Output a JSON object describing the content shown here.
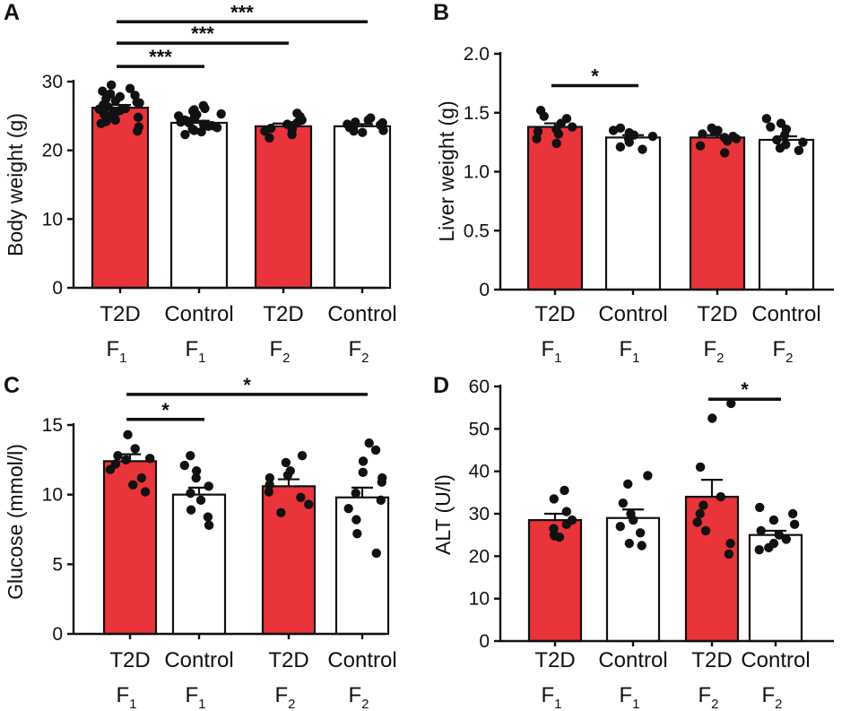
{
  "figure": {
    "bar_fill": "#e8343a",
    "control_fill": "#ffffff",
    "line_color": "#111111"
  },
  "chart_data": [
    {
      "panel": "A",
      "type": "bar",
      "ylabel": "Body weight (g)",
      "ylim": [
        0,
        30
      ],
      "yticks": [
        0,
        10,
        20,
        30
      ],
      "categories": [
        {
          "name": "T2D",
          "gen": "F",
          "sub": "1"
        },
        {
          "name": "Control",
          "gen": "F",
          "sub": "1"
        },
        {
          "name": "T2D",
          "gen": "F",
          "sub": "2"
        },
        {
          "name": "Control",
          "gen": "F",
          "sub": "2"
        }
      ],
      "fill": [
        "red",
        "white",
        "red",
        "white"
      ],
      "means": [
        26.2,
        24.0,
        23.5,
        23.5
      ],
      "sem": [
        0.4,
        0.3,
        0.4,
        0.3
      ],
      "points": [
        [
          22.8,
          23.4,
          23.9,
          24.4,
          24.8,
          25.2,
          25.5,
          25.8,
          26.1,
          26.3,
          26.6,
          26.9,
          27.2,
          27.5,
          27.8,
          28.2,
          28.6,
          29.0,
          29.5,
          25.0,
          26.0,
          27.0,
          24.2,
          28.0,
          25.6
        ],
        [
          22.3,
          22.7,
          23.1,
          23.5,
          23.8,
          24.1,
          24.4,
          24.7,
          25.0,
          25.3,
          25.7,
          26.1,
          26.5,
          23.3,
          24.0,
          24.6,
          25.2,
          22.9,
          23.6,
          24.9,
          25.9,
          24.3
        ],
        [
          21.8,
          22.3,
          22.8,
          23.2,
          23.6,
          24.0,
          24.4,
          24.9,
          25.4,
          23.0,
          23.8
        ],
        [
          22.6,
          22.9,
          23.2,
          23.5,
          23.8,
          24.1,
          24.4,
          24.7,
          23.3,
          23.7,
          24.0,
          22.8
        ]
      ],
      "significance": [
        {
          "from": 0,
          "to": 1,
          "label": "***",
          "y": 32.2
        },
        {
          "from": 0,
          "to": 2,
          "label": "***",
          "y": 35.6
        },
        {
          "from": 0,
          "to": 3,
          "label": "***",
          "y": 38.7
        }
      ]
    },
    {
      "panel": "B",
      "type": "bar",
      "ylabel": "Liver weight (g)",
      "ylim": [
        0,
        2.0
      ],
      "yticks": [
        "0",
        "0.5",
        "1.0",
        "1.5",
        "2.0"
      ],
      "categories": [
        {
          "name": "T2D",
          "gen": "F",
          "sub": "1"
        },
        {
          "name": "Control",
          "gen": "F",
          "sub": "1"
        },
        {
          "name": "T2D",
          "gen": "F",
          "sub": "2"
        },
        {
          "name": "Control",
          "gen": "F",
          "sub": "2"
        }
      ],
      "fill": [
        "red",
        "white",
        "red",
        "white"
      ],
      "means": [
        1.38,
        1.29,
        1.29,
        1.27
      ],
      "sem": [
        0.03,
        0.02,
        0.02,
        0.03
      ],
      "points": [
        [
          1.52,
          1.45,
          1.41,
          1.38,
          1.36,
          1.32,
          1.28,
          1.24,
          1.47,
          1.34
        ],
        [
          1.37,
          1.35,
          1.33,
          1.3,
          1.28,
          1.25,
          1.21,
          1.19,
          1.31
        ],
        [
          1.37,
          1.34,
          1.32,
          1.3,
          1.28,
          1.26,
          1.22,
          1.16,
          1.29,
          1.35
        ],
        [
          1.45,
          1.41,
          1.36,
          1.31,
          1.27,
          1.23,
          1.2,
          1.18,
          1.25,
          1.38
        ]
      ],
      "significance": [
        {
          "from": 0,
          "to": 1,
          "label": "*",
          "y": 1.73
        }
      ]
    },
    {
      "panel": "C",
      "type": "bar",
      "ylabel": "Glucose (mmol/l)",
      "ylim": [
        0,
        15
      ],
      "yticks": [
        0,
        5,
        10,
        15
      ],
      "categories": [
        {
          "name": "T2D",
          "gen": "F",
          "sub": "1"
        },
        {
          "name": "Control",
          "gen": "F",
          "sub": "1"
        },
        {
          "name": "T2D",
          "gen": "F",
          "sub": "2"
        },
        {
          "name": "Control",
          "gen": "F",
          "sub": "2"
        }
      ],
      "fill": [
        "red",
        "white",
        "red",
        "white"
      ],
      "means": [
        12.4,
        10.0,
        10.6,
        9.8
      ],
      "sem": [
        0.5,
        0.5,
        0.5,
        0.7
      ],
      "points": [
        [
          14.3,
          13.3,
          12.8,
          12.5,
          12.2,
          11.8,
          11.2,
          10.7,
          10.2,
          12.6
        ],
        [
          12.8,
          12.1,
          11.2,
          10.6,
          10.1,
          9.6,
          8.9,
          8.4,
          7.8,
          11.7
        ],
        [
          12.8,
          12.3,
          11.7,
          11.2,
          10.7,
          10.2,
          9.8,
          9.3,
          8.7,
          11.4
        ],
        [
          13.7,
          13.2,
          12.4,
          11.6,
          10.9,
          10.1,
          9.6,
          9.0,
          8.2,
          7.2,
          5.8,
          11.2
        ]
      ],
      "significance": [
        {
          "from": 0,
          "to": 1,
          "label": "*",
          "y": 15.4
        },
        {
          "from": 0,
          "to": 3,
          "label": "*",
          "y": 17.2
        }
      ]
    },
    {
      "panel": "D",
      "type": "bar",
      "ylabel": "ALT (U/l)",
      "ylim": [
        0,
        60
      ],
      "yticks": [
        0,
        10,
        20,
        30,
        40,
        50,
        60
      ],
      "categories": [
        {
          "name": "T2D",
          "gen": "F",
          "sub": "1"
        },
        {
          "name": "Control",
          "gen": "F",
          "sub": "1"
        },
        {
          "name": "T2D",
          "gen": "F",
          "sub": "2"
        },
        {
          "name": "Control",
          "gen": "F",
          "sub": "2"
        }
      ],
      "fill": [
        "red",
        "white",
        "red",
        "white"
      ],
      "means": [
        28.5,
        29.0,
        34.0,
        25.0
      ],
      "sem": [
        1.5,
        2.0,
        4.0,
        1.0
      ],
      "points": [
        [
          35.5,
          33.5,
          30.5,
          28.5,
          27.5,
          26.5,
          25.0,
          24.5,
          24.8
        ],
        [
          39.0,
          37.0,
          32.5,
          30.0,
          28.5,
          27.0,
          25.5,
          23.0,
          22.5
        ],
        [
          56.0,
          52.5,
          41.0,
          34.0,
          30.0,
          28.0,
          26.0,
          23.0,
          20.5,
          32.0
        ],
        [
          31.5,
          30.0,
          27.5,
          26.0,
          25.0,
          24.0,
          23.0,
          22.0,
          21.5,
          28.5
        ]
      ],
      "significance": [
        {
          "from": 2,
          "to": 3,
          "label": "*",
          "y": 57.0
        }
      ]
    }
  ]
}
